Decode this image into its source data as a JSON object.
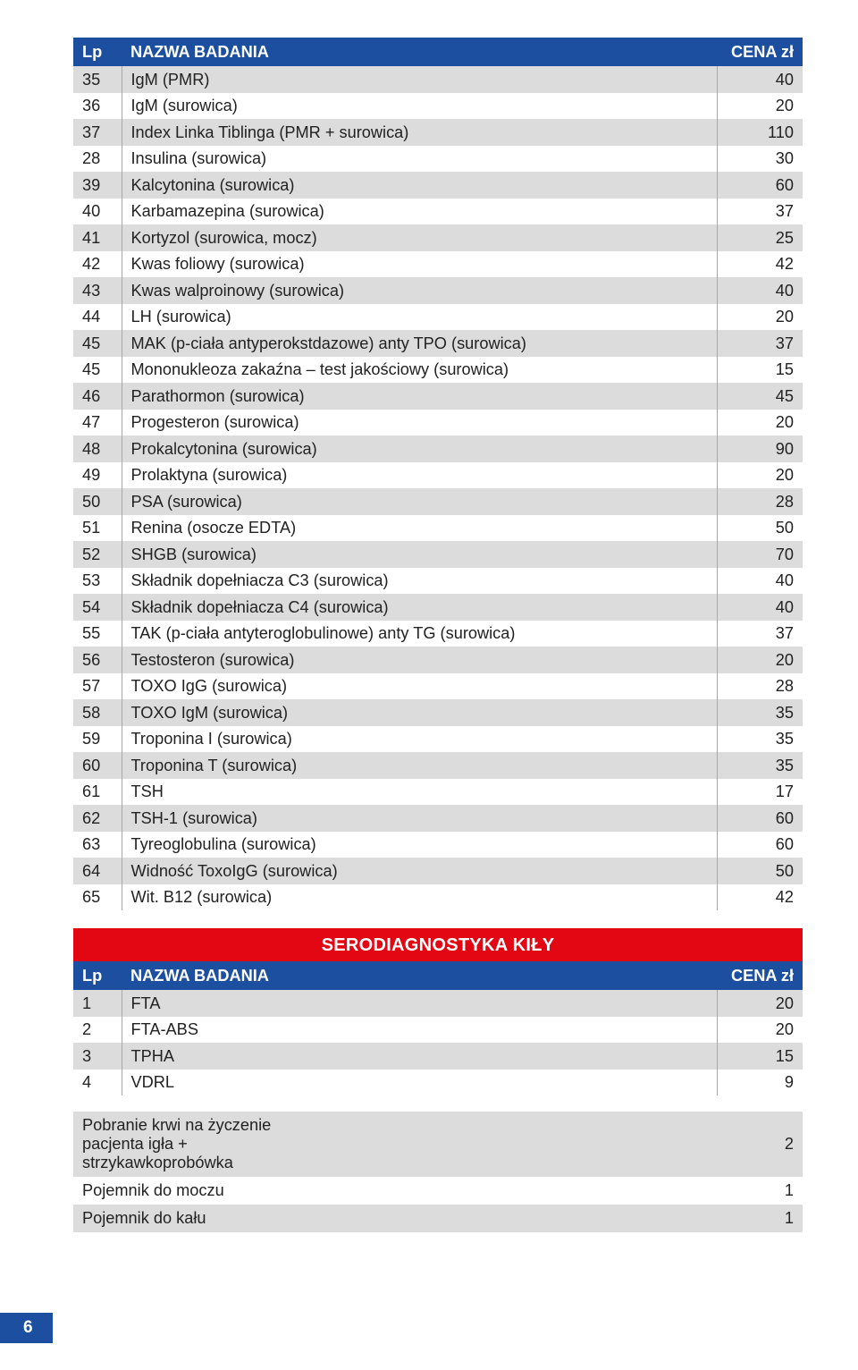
{
  "header": {
    "lp": "Lp",
    "name": "NAZWA BADANIA",
    "price": "CENA zł"
  },
  "table1": [
    {
      "lp": "35",
      "name": "IgM (PMR)",
      "price": "40"
    },
    {
      "lp": "36",
      "name": "IgM (surowica)",
      "price": "20"
    },
    {
      "lp": "37",
      "name": "Index Linka Tiblinga (PMR + surowica)",
      "price": "110"
    },
    {
      "lp": "28",
      "name": "Insulina (surowica)",
      "price": "30"
    },
    {
      "lp": "39",
      "name": "Kalcytonina (surowica)",
      "price": "60"
    },
    {
      "lp": "40",
      "name": "Karbamazepina (surowica)",
      "price": "37"
    },
    {
      "lp": "41",
      "name": "Kortyzol (surowica, mocz)",
      "price": "25"
    },
    {
      "lp": "42",
      "name": "Kwas foliowy (surowica)",
      "price": "42"
    },
    {
      "lp": "43",
      "name": "Kwas walproinowy (surowica)",
      "price": "40"
    },
    {
      "lp": "44",
      "name": "LH (surowica)",
      "price": "20"
    },
    {
      "lp": "45",
      "name": "MAK (p-ciała antyperokstdazowe) anty TPO (surowica)",
      "price": "37"
    },
    {
      "lp": "45",
      "name": "Mononukleoza zakaźna – test jakościowy (surowica)",
      "price": "15"
    },
    {
      "lp": "46",
      "name": "Parathormon (surowica)",
      "price": "45"
    },
    {
      "lp": "47",
      "name": "Progesteron (surowica)",
      "price": "20"
    },
    {
      "lp": "48",
      "name": "Prokalcytonina (surowica)",
      "price": "90"
    },
    {
      "lp": "49",
      "name": "Prolaktyna (surowica)",
      "price": "20"
    },
    {
      "lp": "50",
      "name": "PSA (surowica)",
      "price": "28"
    },
    {
      "lp": "51",
      "name": "Renina (osocze EDTA)",
      "price": "50"
    },
    {
      "lp": "52",
      "name": "SHGB (surowica)",
      "price": "70"
    },
    {
      "lp": "53",
      "name": "Składnik dopełniacza C3 (surowica)",
      "price": "40"
    },
    {
      "lp": "54",
      "name": "Składnik dopełniacza C4 (surowica)",
      "price": "40"
    },
    {
      "lp": "55",
      "name": "TAK (p-ciała antyteroglobulinowe) anty TG (surowica)",
      "price": "37"
    },
    {
      "lp": "56",
      "name": "Testosteron (surowica)",
      "price": "20"
    },
    {
      "lp": "57",
      "name": "TOXO IgG (surowica)",
      "price": "28"
    },
    {
      "lp": "58",
      "name": "TOXO IgM (surowica)",
      "price": "35"
    },
    {
      "lp": "59",
      "name": "Troponina I (surowica)",
      "price": "35"
    },
    {
      "lp": "60",
      "name": "Troponina T (surowica)",
      "price": "35"
    },
    {
      "lp": "61",
      "name": "TSH",
      "price": "17"
    },
    {
      "lp": "62",
      "name": "TSH-1 (surowica)",
      "price": "60"
    },
    {
      "lp": "63",
      "name": "Tyreoglobulina (surowica)",
      "price": "60"
    },
    {
      "lp": "64",
      "name": "Widność ToxoIgG (surowica)",
      "price": "50"
    },
    {
      "lp": "65",
      "name": "Wit. B12 (surowica)",
      "price": "42"
    }
  ],
  "section2_title": "SERODIAGNOSTYKA KIŁY",
  "table2": [
    {
      "lp": "1",
      "name": "FTA",
      "price": "20"
    },
    {
      "lp": "2",
      "name": "FTA-ABS",
      "price": "20"
    },
    {
      "lp": "3",
      "name": "TPHA",
      "price": "15"
    },
    {
      "lp": "4",
      "name": "VDRL",
      "price": "9"
    }
  ],
  "notes": [
    {
      "text": "Pobranie krwi na życzenie pacjenta igła + strzykawkoprobówka",
      "price": "2"
    },
    {
      "text": "Pojemnik do moczu",
      "price": "1"
    },
    {
      "text": "Pojemnik do kału",
      "price": "1"
    }
  ],
  "page_number": "6",
  "colors": {
    "header_bg": "#1c4fa0",
    "header_text": "#ffffff",
    "row_odd": "#dcdcdc",
    "row_even": "#ffffff",
    "section_bg": "#e30613",
    "cell_border": "#a7a7a7"
  }
}
